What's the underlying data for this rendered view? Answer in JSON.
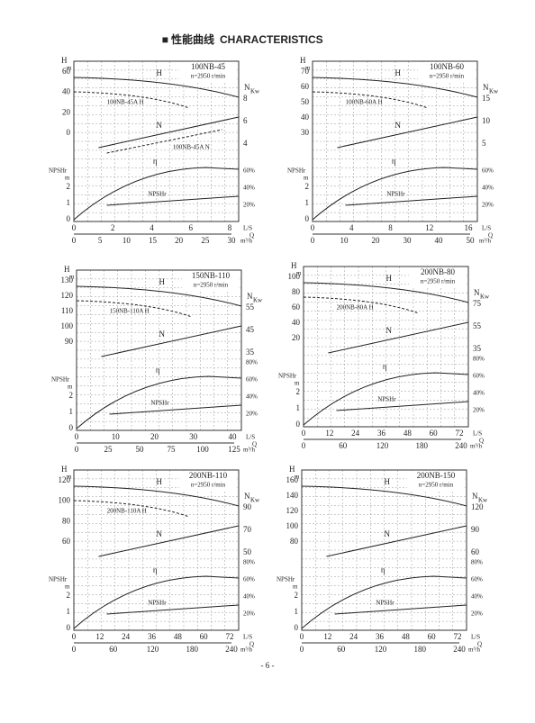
{
  "header": {
    "mark": "■ 性能曲线",
    "title": "CHARACTERISTICS"
  },
  "page_number": "- 6 -",
  "panels": [
    {
      "model": "100NB-45",
      "speed": "n=2950 r/min",
      "h_axis": "H",
      "h_unit": "m",
      "n_axis": "N",
      "n_unit": "Kw",
      "npshr_axis": "NPSHr",
      "npshr_unit": "m",
      "flow_unit": "L/S",
      "q_axis": "Q",
      "q_unit": "m³/h",
      "h_ticks": [
        "0",
        "20",
        "40",
        "60"
      ],
      "n_ticks": [
        "4",
        "6",
        "8"
      ],
      "npshr_ticks": [
        "0",
        "1",
        "2"
      ],
      "eff_ticks": [
        "20%",
        "40%",
        "60%"
      ],
      "flow_ticks": [
        "0",
        "2",
        "4",
        "6",
        "8"
      ],
      "q_ticks": [
        "0",
        "5",
        "10",
        "15",
        "20",
        "25",
        "30"
      ],
      "labels": {
        "h": "H",
        "n": "N",
        "eta": "η",
        "npshr": "NPSHr",
        "alt_h": "100NB-45A H",
        "alt_n": "100NB-45A N"
      }
    },
    {
      "model": "100NB-60",
      "speed": "n=2950 r/min",
      "h_axis": "H",
      "h_unit": "m",
      "n_axis": "N",
      "n_unit": "Kw",
      "npshr_axis": "NPSHr",
      "npshr_unit": "m",
      "flow_unit": "L/S",
      "q_axis": "Q",
      "q_unit": "m³/h",
      "h_ticks": [
        "30",
        "40",
        "50",
        "60",
        "70"
      ],
      "n_ticks": [
        "5",
        "10",
        "15"
      ],
      "npshr_ticks": [
        "0",
        "1",
        "2"
      ],
      "eff_ticks": [
        "20%",
        "40%",
        "60%"
      ],
      "flow_ticks": [
        "0",
        "4",
        "8",
        "12",
        "16"
      ],
      "q_ticks": [
        "0",
        "10",
        "20",
        "30",
        "40",
        "50"
      ],
      "labels": {
        "h": "H",
        "n": "N",
        "eta": "η",
        "npshr": "NPSHr",
        "alt_h": "100NB-60A H"
      }
    },
    {
      "model": "150NB-110",
      "speed": "n=2950 r/min",
      "h_axis": "H",
      "h_unit": "m",
      "n_axis": "N",
      "n_unit": "Kw",
      "npshr_axis": "NPSHr",
      "npshr_unit": "m",
      "flow_unit": "L/S",
      "q_axis": "Q",
      "q_unit": "m³/h",
      "h_ticks": [
        "90",
        "100",
        "110",
        "120",
        "130"
      ],
      "n_ticks": [
        "35",
        "45",
        "55"
      ],
      "npshr_ticks": [
        "0",
        "1",
        "2"
      ],
      "eff_ticks": [
        "20%",
        "40%",
        "60%",
        "80%"
      ],
      "flow_ticks": [
        "0",
        "10",
        "20",
        "30",
        "40"
      ],
      "q_ticks": [
        "0",
        "25",
        "50",
        "75",
        "100",
        "125"
      ],
      "labels": {
        "h": "H",
        "n": "N",
        "eta": "η",
        "npshr": "NPSHr",
        "alt_h": "150NB-110A H"
      }
    },
    {
      "model": "200NB-80",
      "speed": "n=2950 r/min",
      "h_axis": "H",
      "h_unit": "m",
      "n_axis": "N",
      "n_unit": "Kw",
      "npshr_axis": "NPSHr",
      "npshr_unit": "m",
      "flow_unit": "L/S",
      "q_axis": "Q",
      "q_unit": "m³/h",
      "h_ticks": [
        "20",
        "40",
        "60",
        "80",
        "100"
      ],
      "n_ticks": [
        "35",
        "55",
        "75"
      ],
      "npshr_ticks": [
        "0",
        "1",
        "2"
      ],
      "eff_ticks": [
        "20%",
        "40%",
        "60%",
        "80%"
      ],
      "flow_ticks": [
        "0",
        "12",
        "24",
        "36",
        "48",
        "60",
        "72"
      ],
      "q_ticks": [
        "0",
        "60",
        "120",
        "180",
        "240"
      ],
      "labels": {
        "h": "H",
        "n": "N",
        "eta": "η",
        "npshr": "NPSHr",
        "alt_h": "200NB-80A H"
      }
    },
    {
      "model": "200NB-110",
      "speed": "n=2950 r/min",
      "h_axis": "H",
      "h_unit": "m",
      "n_axis": "N",
      "n_unit": "Kw",
      "npshr_axis": "NPSHr",
      "npshr_unit": "m",
      "flow_unit": "L/S",
      "q_axis": "Q",
      "q_unit": "m³/h",
      "h_ticks": [
        "60",
        "80",
        "100",
        "120"
      ],
      "n_ticks": [
        "50",
        "70",
        "90"
      ],
      "npshr_ticks": [
        "0",
        "1",
        "2"
      ],
      "eff_ticks": [
        "20%",
        "40%",
        "60%",
        "80%"
      ],
      "flow_ticks": [
        "0",
        "12",
        "24",
        "36",
        "48",
        "60",
        "72"
      ],
      "q_ticks": [
        "0",
        "60",
        "120",
        "180",
        "240"
      ],
      "labels": {
        "h": "H",
        "n": "N",
        "eta": "η",
        "npshr": "NPSHr",
        "alt_h": "200NB-110A H"
      }
    },
    {
      "model": "200NB-150",
      "speed": "n=2950 r/min",
      "h_axis": "H",
      "h_unit": "m",
      "n_axis": "N",
      "n_unit": "Kw",
      "npshr_axis": "NPSHr",
      "npshr_unit": "m",
      "flow_unit": "L/S",
      "q_axis": "Q",
      "q_unit": "m³/h",
      "h_ticks": [
        "80",
        "100",
        "120",
        "140",
        "160"
      ],
      "n_ticks": [
        "60",
        "90",
        "120"
      ],
      "npshr_ticks": [
        "0",
        "1",
        "2"
      ],
      "eff_ticks": [
        "20%",
        "40%",
        "60%",
        "80%"
      ],
      "flow_ticks": [
        "0",
        "12",
        "24",
        "36",
        "48",
        "60",
        "72"
      ],
      "q_ticks": [
        "0",
        "60",
        "120",
        "180",
        "240"
      ],
      "labels": {
        "h": "H",
        "n": "N",
        "eta": "η",
        "npshr": "NPSHr"
      }
    }
  ]
}
